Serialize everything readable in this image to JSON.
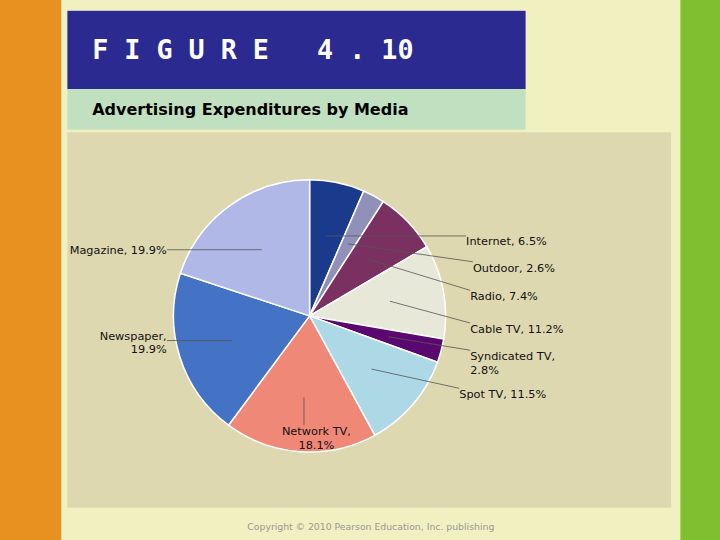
{
  "chart_data": {
    "type": "pie",
    "title": "F I G U R E   4 . 10",
    "subtitle": "Advertising Expenditures by Media",
    "values": [
      6.5,
      2.6,
      7.4,
      11.2,
      2.8,
      11.5,
      18.1,
      19.9,
      19.9
    ],
    "value_labels": [
      "Internet, 6.5%",
      "Outdoor, 2.6%",
      "Radio, 7.4%",
      "Cable TV, 11.2%",
      "Syndicated TV,\n2.8%",
      "Spot TV, 11.5%",
      "Network TV,\n18.1%",
      "Newspaper,\n19.9%",
      "Magazine, 19.9%"
    ],
    "colors": [
      "#1a3a8c",
      "#9090b8",
      "#7a3060",
      "#e8e8d8",
      "#5a0870",
      "#add8e6",
      "#f08878",
      "#4472c4",
      "#b0b8e8"
    ],
    "data_labels": true,
    "annotations": [
      "Copyright © 2010 Pearson Education, Inc. publishing"
    ]
  }
}
